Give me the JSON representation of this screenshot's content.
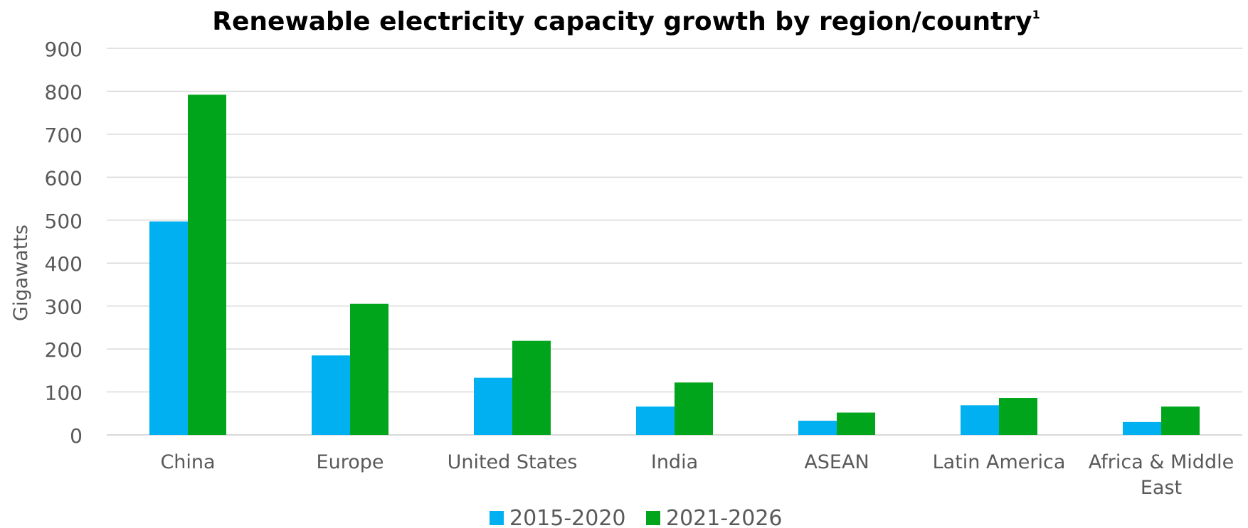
{
  "chart_data": {
    "type": "bar",
    "title": "Renewable electricity capacity growth by region/country",
    "title_superscript": "1",
    "xlabel": "",
    "ylabel": "Gigawatts",
    "ylim": [
      0,
      900
    ],
    "yticks": [
      0,
      100,
      200,
      300,
      400,
      500,
      600,
      700,
      800,
      900
    ],
    "grid": true,
    "legend_position": "bottom",
    "categories": [
      [
        "China"
      ],
      [
        "Europe"
      ],
      [
        "United States"
      ],
      [
        "India"
      ],
      [
        "ASEAN"
      ],
      [
        "Latin America"
      ],
      [
        "Africa & Middle",
        "East"
      ]
    ],
    "series": [
      {
        "name": "2015-2020",
        "color": "#00b0f0",
        "values": [
          497,
          185,
          133,
          66,
          33,
          69,
          30
        ]
      },
      {
        "name": "2021-2026",
        "color": "#00a51c",
        "values": [
          792,
          305,
          219,
          122,
          52,
          86,
          66
        ]
      }
    ],
    "colors": {
      "grid": "#d9d9d9",
      "axis": "#d9d9d9",
      "text": "#595959",
      "title": "#000000"
    }
  }
}
